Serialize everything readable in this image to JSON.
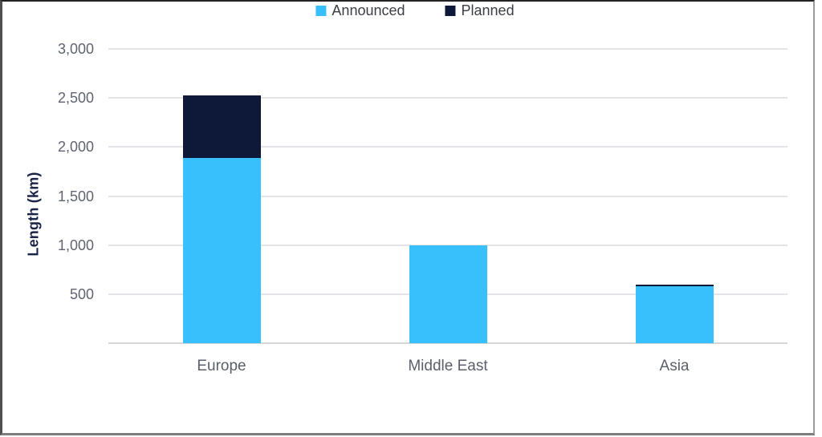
{
  "chart_data": {
    "type": "bar",
    "stacked": true,
    "title": "",
    "categories": [
      "Europe",
      "Middle East",
      "Asia"
    ],
    "series": [
      {
        "name": "Announced",
        "color": "#38c0fc",
        "values": [
          1890,
          1000,
          580
        ]
      },
      {
        "name": "Planned",
        "color": "#0e1838",
        "values": [
          640,
          0,
          20
        ]
      }
    ],
    "xlabel": "",
    "ylabel": "Length (km)",
    "ylim": [
      0,
      3000
    ],
    "ytick_interval": 500,
    "yticks": [
      {
        "label": "3,000",
        "value": 3000
      },
      {
        "label": "2,500",
        "value": 2500
      },
      {
        "label": "2,000",
        "value": 2000
      },
      {
        "label": "1,500",
        "value": 1500
      },
      {
        "label": "1,000",
        "value": 1000
      },
      {
        "label": "500",
        "value": 500
      }
    ],
    "grid": true,
    "legend_position": "top-center",
    "colors": {
      "announced": "#38c0fc",
      "planned": "#0e1838",
      "gridline": "#e4e4e8",
      "axis_line": "#d6d6da",
      "tick_label_text": "#5f6470",
      "category_label_text": "#5a5f69",
      "legend_text": "#3c3e45",
      "axis_title_text": "#1b2347"
    }
  }
}
